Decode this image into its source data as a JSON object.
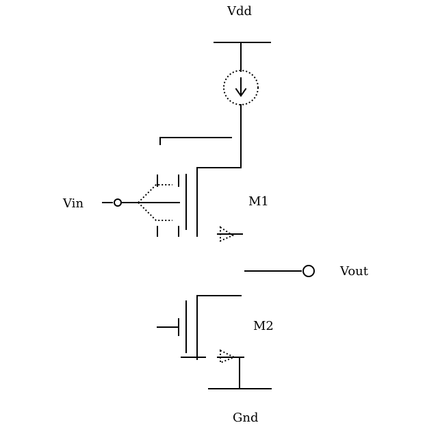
{
  "labels": {
    "vdd": "Vdd",
    "gnd": "Gnd",
    "vin": "Vin",
    "vout": "Vout",
    "m1": "M1",
    "m2": "M2"
  },
  "colors": {
    "stroke": "#000000",
    "background": "#ffffff"
  }
}
